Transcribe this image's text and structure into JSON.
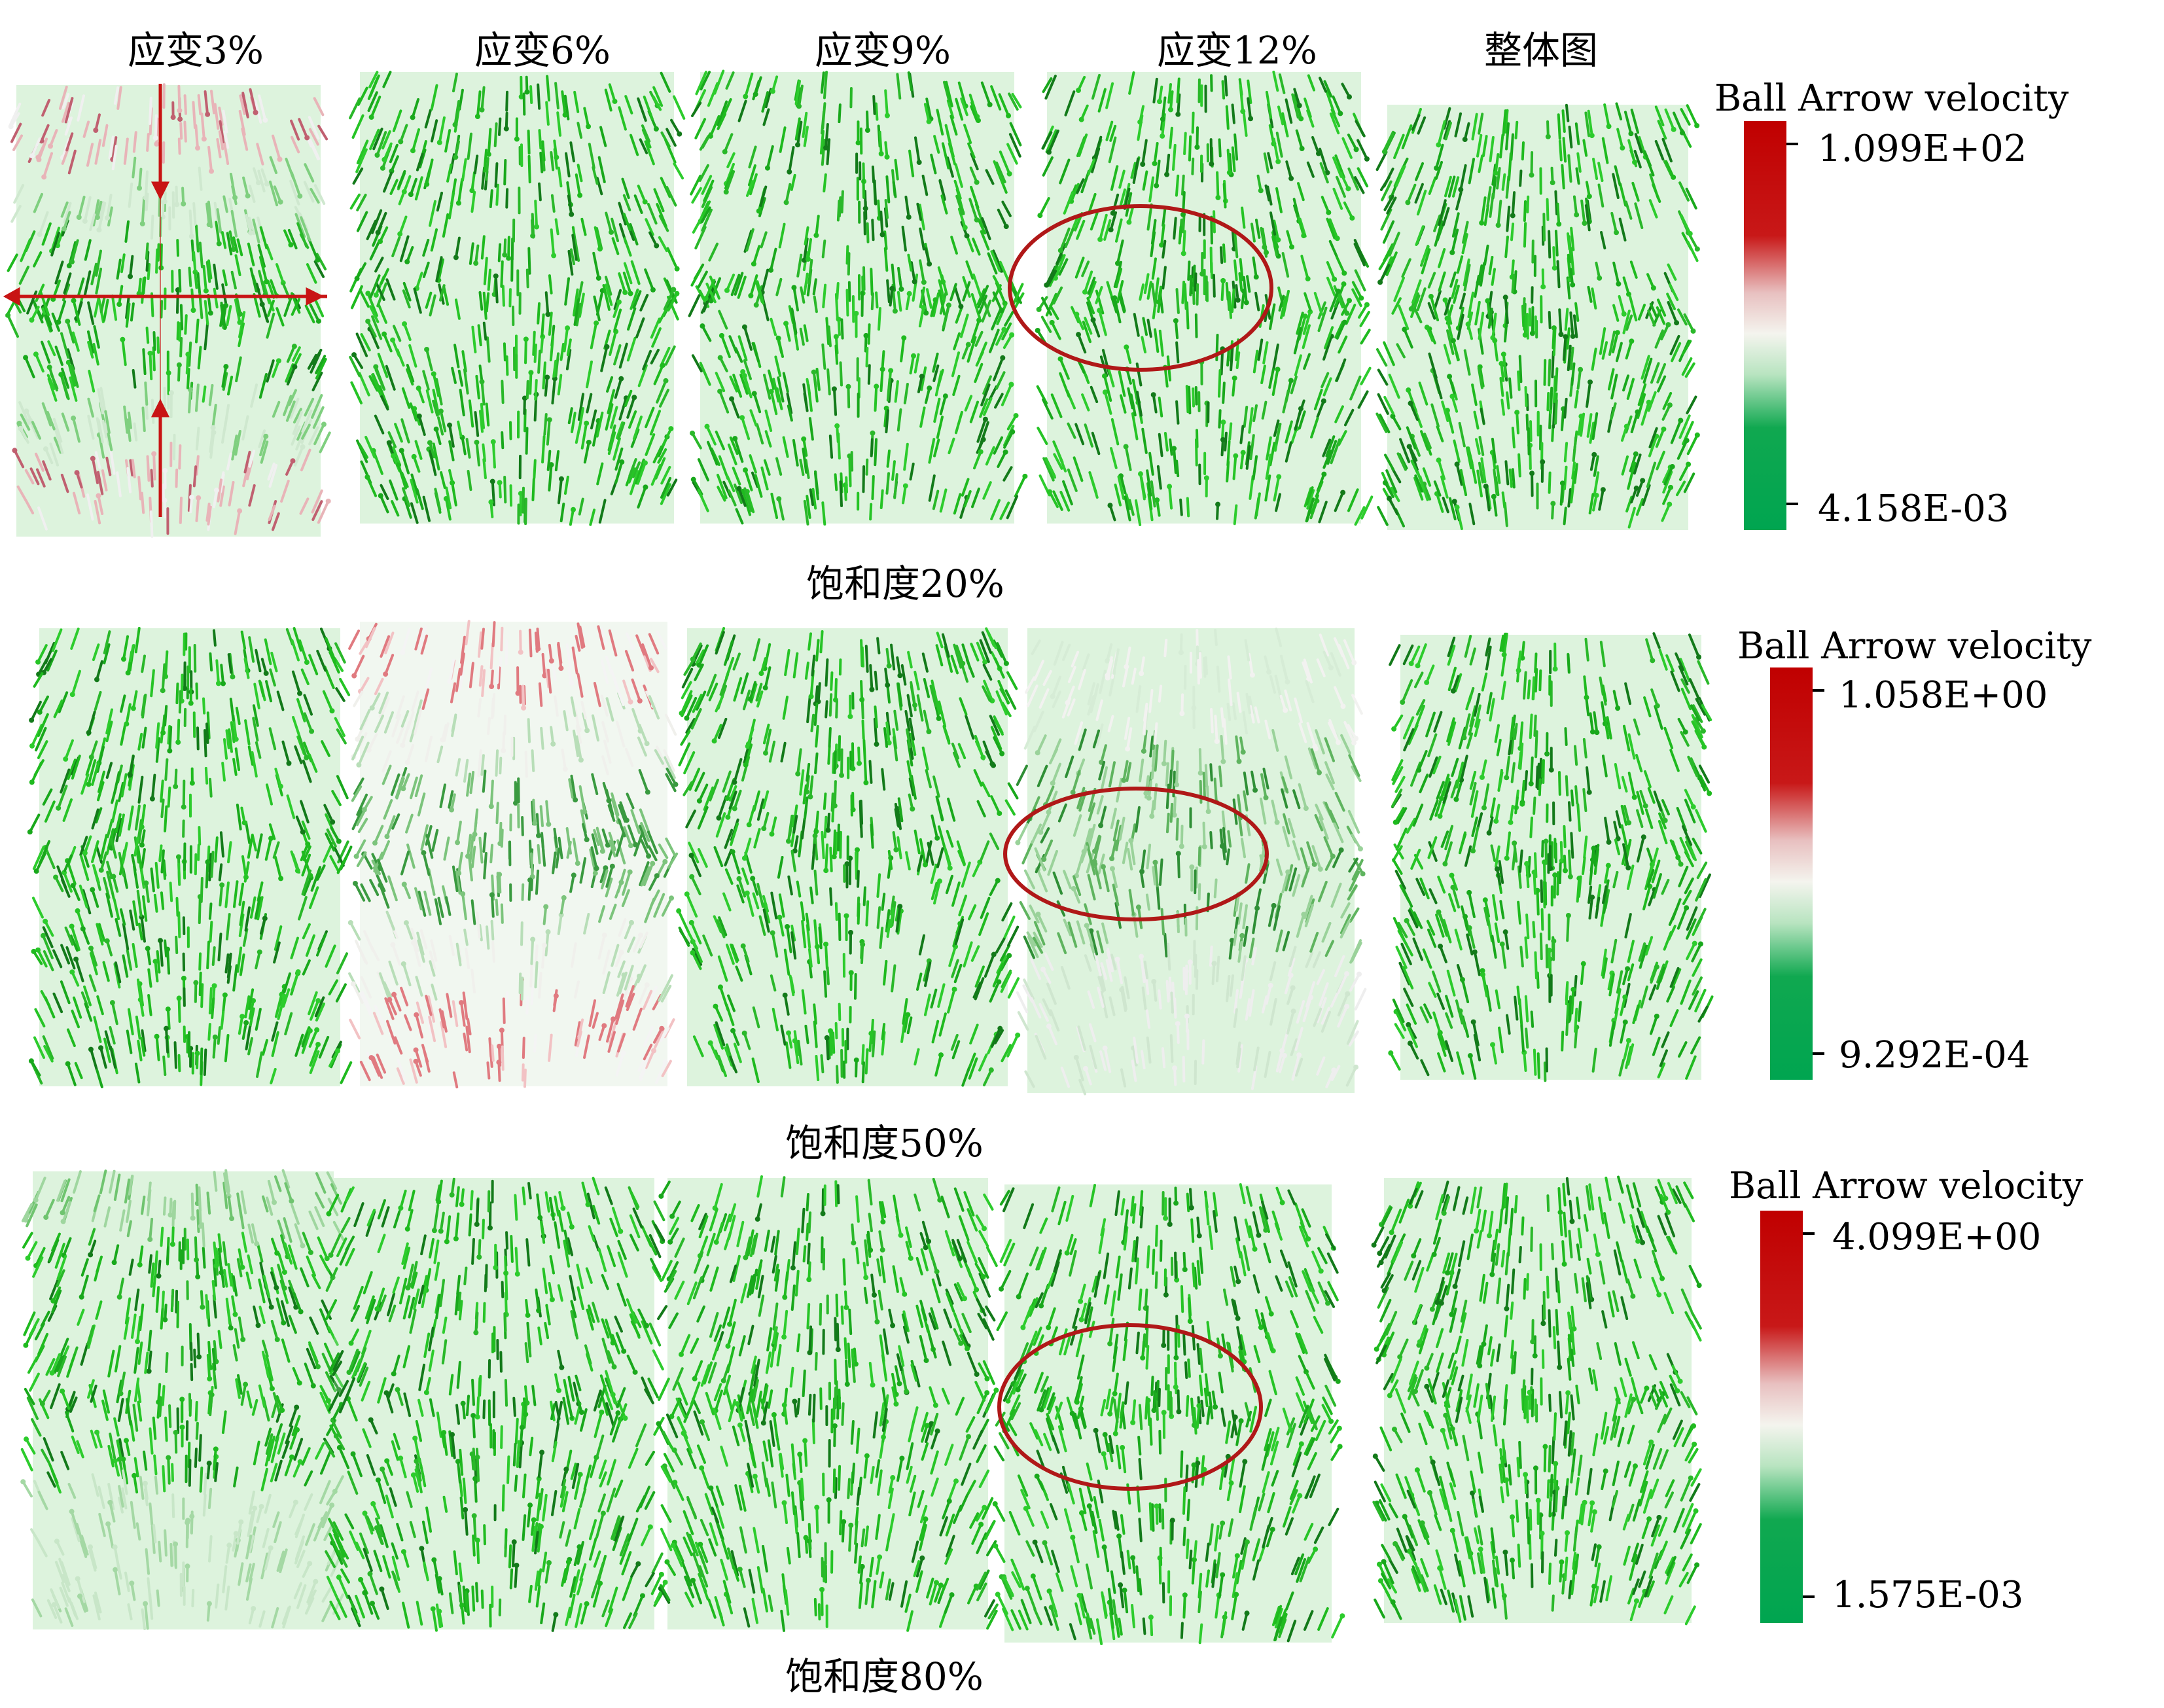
{
  "column_labels": [
    "应变3%",
    "应变6%",
    "应变9%",
    "应变12%",
    "整体图"
  ],
  "rows": [
    {
      "saturation_label": "饱和度20%",
      "legend": {
        "title": "Ball Arrow velocity",
        "max_label": "1.099E+02",
        "min_label": "4.158E-03"
      },
      "panel_color_modes": [
        "mixed-red-top-bottom",
        "green",
        "green",
        "green",
        "green"
      ],
      "highlight_panel": 4,
      "first_panel_has_red_axes": true
    },
    {
      "saturation_label": "饱和度50%",
      "legend": {
        "title": "Ball Arrow velocity",
        "max_label": "1.058E+00",
        "min_label": "9.292E-04"
      },
      "panel_color_modes": [
        "green",
        "red-pink",
        "green",
        "white-pink",
        "green"
      ],
      "highlight_panel": 4,
      "first_panel_has_red_axes": false
    },
    {
      "saturation_label": "饱和度80%",
      "legend": {
        "title": "Ball Arrow velocity",
        "max_label": "4.099E+00",
        "min_label": "1.575E-03"
      },
      "panel_color_modes": [
        "light-green",
        "green",
        "green",
        "green",
        "green"
      ],
      "highlight_panel": 4,
      "first_panel_has_red_axes": false
    }
  ],
  "colors": {
    "arrow_green": "#22c422",
    "arrow_dark_green": "#137a1a",
    "highlight_red": "#b01818",
    "scale_top": "#c00000",
    "scale_mid": "#f2f2f0",
    "scale_bottom": "#00a550"
  },
  "icons": [
    "velocity-arrow-icon",
    "highlight-ellipse-icon",
    "color-scale-bar-icon"
  ]
}
